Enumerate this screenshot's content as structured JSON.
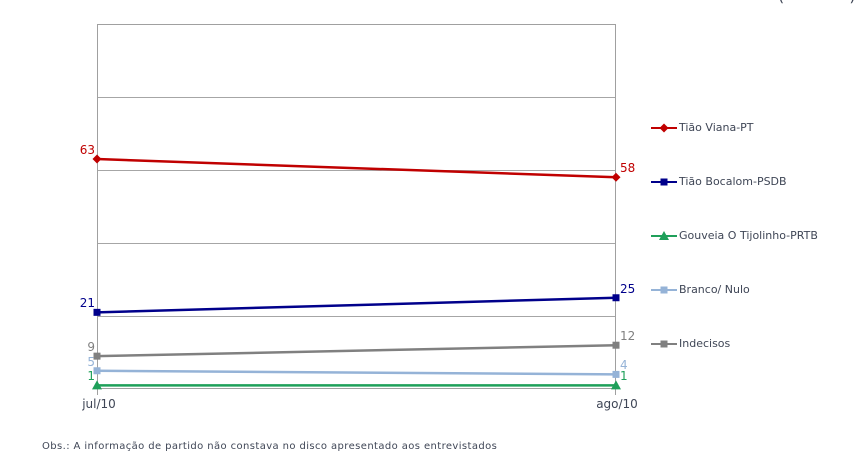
{
  "chart": {
    "corner_fragment": "( )",
    "footnote": "Obs.: A informação de partido não constava no disco apresentado aos entrevistados"
  },
  "chart_data": {
    "type": "line",
    "title": "",
    "xlabel": "",
    "ylabel": "",
    "categories": [
      "jul/10",
      "ago/10"
    ],
    "series": [
      {
        "name": "Tião Viana-PT",
        "values": [
          63,
          58
        ],
        "color": "#C00000",
        "marker": "diamond"
      },
      {
        "name": "Tião Bocalom-PSDB",
        "values": [
          21,
          25
        ],
        "color": "#00008B",
        "marker": "square"
      },
      {
        "name": "Gouveia O Tijolinho-PRTB",
        "values": [
          1,
          1
        ],
        "color": "#1FA05A",
        "marker": "triangle"
      },
      {
        "name": "Branco/ Nulo",
        "values": [
          5,
          4
        ],
        "color": "#95B3D7",
        "marker": "square"
      },
      {
        "name": "Indecisos",
        "values": [
          9,
          12
        ],
        "color": "#808080",
        "marker": "square"
      }
    ],
    "ylim": [
      0,
      100
    ],
    "gridlines": [
      0,
      20,
      40,
      60,
      80,
      100
    ],
    "grid_on": true,
    "legend_position": "right",
    "data_labels": true,
    "style": {
      "grid_color": "#A6A6A6",
      "border_color": "#A0A0A0",
      "text_color": "#3F4656"
    }
  }
}
